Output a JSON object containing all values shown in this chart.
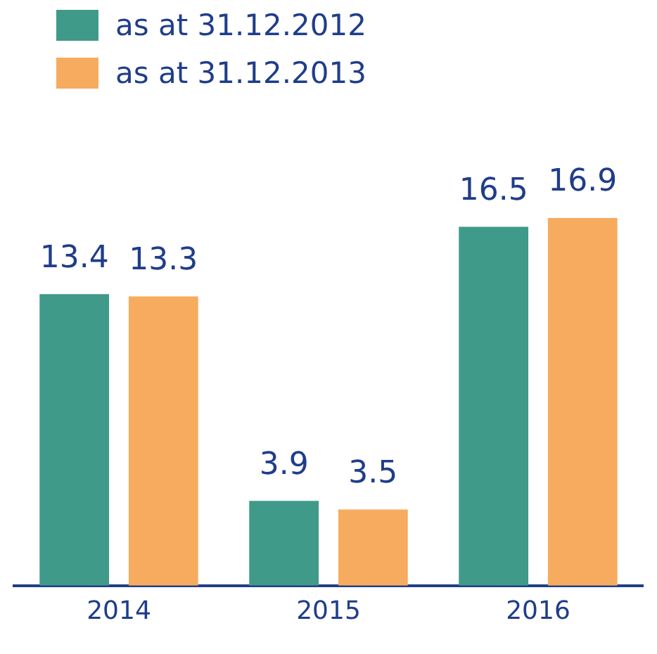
{
  "chart_data": {
    "type": "bar",
    "categories": [
      "2014",
      "2015",
      "2016"
    ],
    "series": [
      {
        "name": "as at 31.12.2012",
        "color": "#3f9a89",
        "values": [
          13.4,
          3.9,
          16.5
        ]
      },
      {
        "name": "as at 31.12.2013",
        "color": "#f6ab5e",
        "values": [
          13.3,
          3.5,
          16.9
        ]
      }
    ],
    "data_labels": true,
    "legend": "top left",
    "grid": false,
    "tick_labels": "x"
  }
}
